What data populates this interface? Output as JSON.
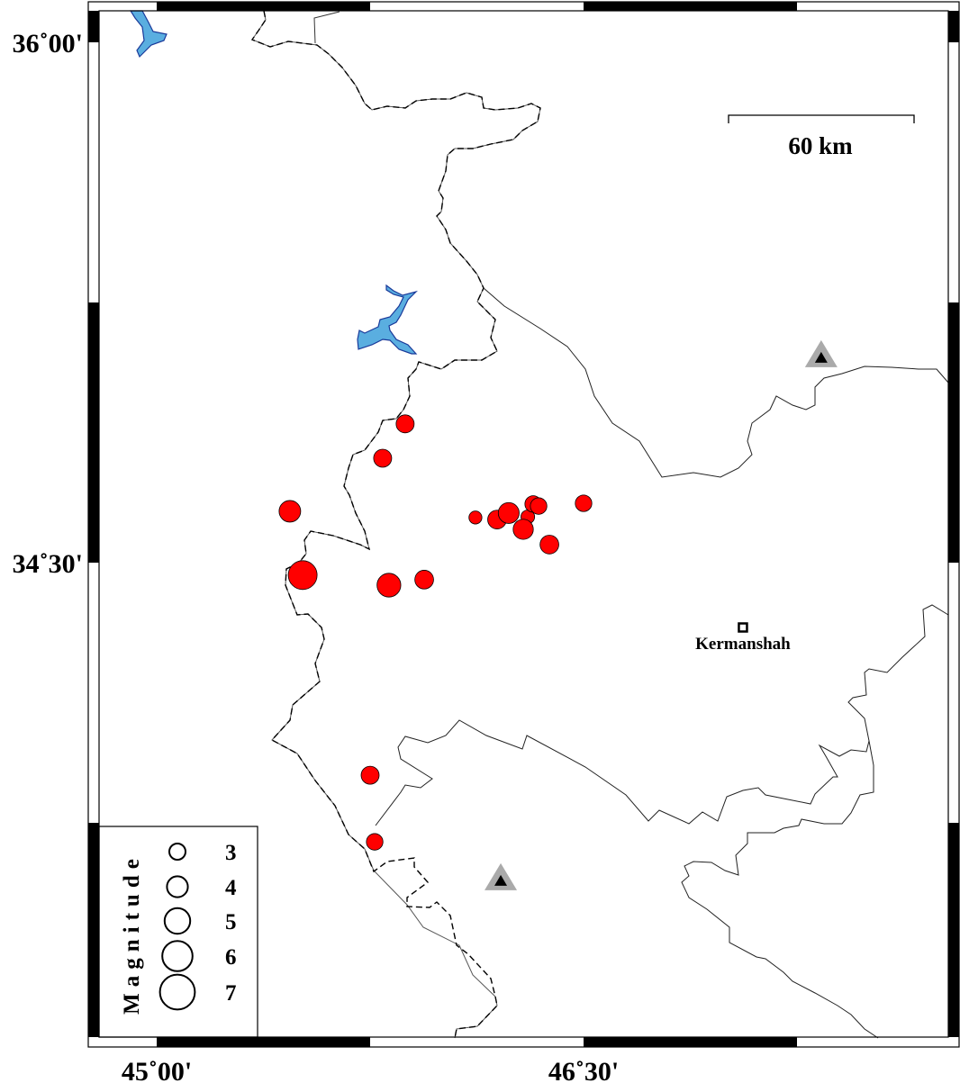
{
  "map": {
    "extent": {
      "lon": [
        44.76,
        47.75
      ],
      "lat": [
        33.02,
        36.09
      ]
    },
    "frame_ticks": {
      "lon_labels": [
        {
          "lon": 45.0,
          "text": "45˚00'"
        },
        {
          "lon": 46.5,
          "text": "46˚30'"
        }
      ],
      "lat_labels": [
        {
          "lat": 36.0,
          "text": "36˚00'"
        },
        {
          "lat": 34.5,
          "text": "34˚30'"
        }
      ]
    },
    "scale_bar": {
      "label": "60 km",
      "length_km": 60
    },
    "city": {
      "name": "Kermanshah",
      "lon": 47.06,
      "lat": 34.313
    },
    "stations": [
      {
        "lon": 47.335,
        "lat": 35.092
      },
      {
        "lon": 46.209,
        "lat": 33.584
      }
    ],
    "earthquakes": [
      {
        "lon": 45.873,
        "lat": 34.9,
        "mag": 3.0
      },
      {
        "lon": 45.794,
        "lat": 34.801,
        "mag": 3.0
      },
      {
        "lon": 45.468,
        "lat": 34.648,
        "mag": 3.5
      },
      {
        "lon": 45.513,
        "lat": 34.464,
        "mag": 4.5
      },
      {
        "lon": 45.816,
        "lat": 34.435,
        "mag": 3.8
      },
      {
        "lon": 45.94,
        "lat": 34.451,
        "mag": 3.1
      },
      {
        "lon": 46.12,
        "lat": 34.63,
        "mag": 2.3
      },
      {
        "lon": 46.196,
        "lat": 34.624,
        "mag": 3.1
      },
      {
        "lon": 46.237,
        "lat": 34.643,
        "mag": 3.4
      },
      {
        "lon": 46.304,
        "lat": 34.632,
        "mag": 2.4
      },
      {
        "lon": 46.323,
        "lat": 34.669,
        "mag": 2.8
      },
      {
        "lon": 46.342,
        "lat": 34.663,
        "mag": 2.8
      },
      {
        "lon": 46.288,
        "lat": 34.596,
        "mag": 3.3
      },
      {
        "lon": 46.38,
        "lat": 34.552,
        "mag": 3.1
      },
      {
        "lon": 46.5,
        "lat": 34.671,
        "mag": 2.8
      },
      {
        "lon": 45.75,
        "lat": 33.887,
        "mag": 3.0
      },
      {
        "lon": 45.766,
        "lat": 33.695,
        "mag": 2.8
      }
    ],
    "legend": {
      "title": "Magnitude",
      "items": [
        {
          "mag": 3,
          "label": "3"
        },
        {
          "mag": 4,
          "label": "4"
        },
        {
          "mag": 5,
          "label": "5"
        },
        {
          "mag": 6,
          "label": "6"
        },
        {
          "mag": 7,
          "label": "7"
        }
      ]
    },
    "colors": {
      "earthquake": "#ff0000",
      "lake": "#5aaee0",
      "lake_outline": "#1a3a9a",
      "station_outer": "#aaaaaa",
      "station_inner": "#000000",
      "border": "#444444"
    }
  }
}
